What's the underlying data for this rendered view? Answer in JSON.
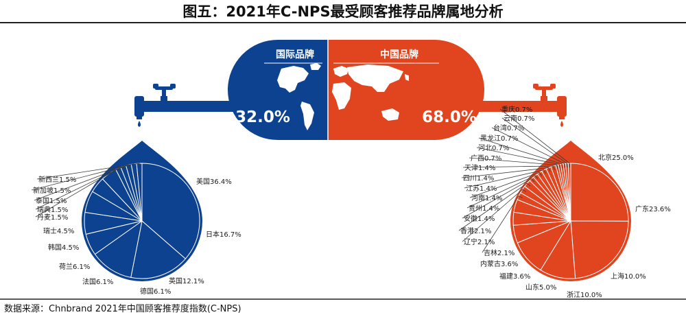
{
  "title": "图五：2021年C-NPS最受顾客推荐品牌属地分析",
  "source": "数据来源：Chnbrand 2021年中国顾客推荐度指数(C-NPS)",
  "colors": {
    "international": "#0d4290",
    "china": "#e14520",
    "line": "#3a3a3a",
    "title": "#111111"
  },
  "chart_data": [
    {
      "type": "pie",
      "title": "",
      "slices": [
        {
          "label": "国际品牌",
          "value": 32.0,
          "display": "32.0%"
        },
        {
          "label": "中国品牌",
          "value": 68.0,
          "display": "68.0%"
        }
      ]
    },
    {
      "type": "pie",
      "title": "",
      "group": "国际品牌",
      "slices": [
        {
          "label": "美国",
          "value": 36.4,
          "display": "美国36.4%"
        },
        {
          "label": "日本",
          "value": 16.7,
          "display": "日本16.7%"
        },
        {
          "label": "英国",
          "value": 12.1,
          "display": "英国12.1%"
        },
        {
          "label": "德国",
          "value": 6.1,
          "display": "德国6.1%"
        },
        {
          "label": "法国",
          "value": 6.1,
          "display": "法国6.1%"
        },
        {
          "label": "荷兰",
          "value": 6.1,
          "display": "荷兰6.1%"
        },
        {
          "label": "韩国",
          "value": 4.5,
          "display": "韩国4.5%"
        },
        {
          "label": "瑞士",
          "value": 4.5,
          "display": "瑞士4.5%"
        },
        {
          "label": "丹麦",
          "value": 1.5,
          "display": "丹麦1.5%"
        },
        {
          "label": "瑞典",
          "value": 1.5,
          "display": "瑞典1.5%"
        },
        {
          "label": "泰国",
          "value": 1.5,
          "display": "泰国1.5%"
        },
        {
          "label": "新加坡",
          "value": 1.5,
          "display": "新加坡1.5%"
        },
        {
          "label": "新西兰",
          "value": 1.5,
          "display": "新西兰1.5%"
        }
      ]
    },
    {
      "type": "pie",
      "title": "",
      "group": "中国品牌",
      "slices": [
        {
          "label": "北京",
          "value": 25.0,
          "display": "北京25.0%"
        },
        {
          "label": "广东",
          "value": 23.6,
          "display": "广东23.6%"
        },
        {
          "label": "上海",
          "value": 10.0,
          "display": "上海10.0%"
        },
        {
          "label": "浙江",
          "value": 10.0,
          "display": "浙江10.0%"
        },
        {
          "label": "山东",
          "value": 5.0,
          "display": "山东5.0%"
        },
        {
          "label": "福建",
          "value": 3.6,
          "display": "福建3.6%"
        },
        {
          "label": "内蒙古",
          "value": 3.6,
          "display": "内蒙古3.6%"
        },
        {
          "label": "吉林",
          "value": 2.1,
          "display": "吉林2.1%"
        },
        {
          "label": "辽宁",
          "value": 2.1,
          "display": "辽宁2.1%"
        },
        {
          "label": "香港",
          "value": 2.1,
          "display": "香港2.1%"
        },
        {
          "label": "安徽",
          "value": 1.4,
          "display": "安徽1.4%"
        },
        {
          "label": "贵州",
          "value": 1.4,
          "display": "贵州1.4%"
        },
        {
          "label": "河南",
          "value": 1.4,
          "display": "河南1.4%"
        },
        {
          "label": "江苏",
          "value": 1.4,
          "display": "江苏1.4%"
        },
        {
          "label": "四川",
          "value": 1.4,
          "display": "四川1.4%"
        },
        {
          "label": "天津",
          "value": 1.4,
          "display": "天津1.4%"
        },
        {
          "label": "广西",
          "value": 0.7,
          "display": "广西0.7%"
        },
        {
          "label": "河北",
          "value": 0.7,
          "display": "河北0.7%"
        },
        {
          "label": "黑龙江",
          "value": 0.7,
          "display": "黑龙江0.7%"
        },
        {
          "label": "台湾",
          "value": 0.7,
          "display": "台湾0.7%"
        },
        {
          "label": "云南",
          "value": 0.7,
          "display": "云南0.7%"
        },
        {
          "label": "重庆",
          "value": 0.7,
          "display": "重庆0.7%"
        }
      ]
    }
  ]
}
